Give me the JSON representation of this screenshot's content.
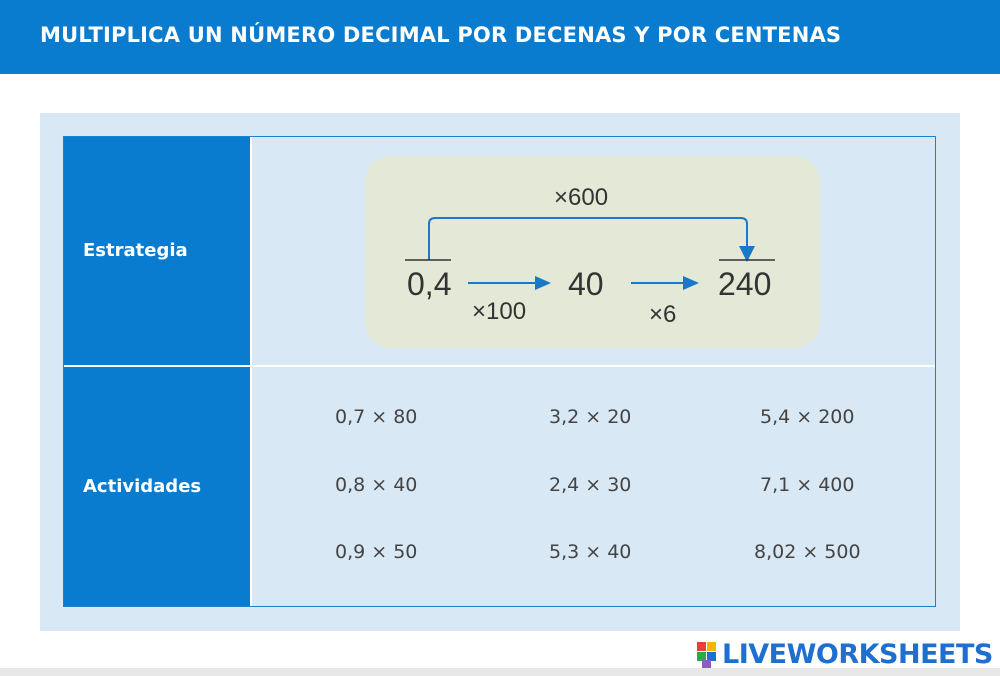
{
  "header": {
    "title": "MULTIPLICA UN NÚMERO DECIMAL POR DECENAS Y POR CENTENAS"
  },
  "rows": {
    "strategy_label": "Estrategia",
    "activities_label": "Actividades"
  },
  "strategy": {
    "top_operator": "×600",
    "start_value": "0,4",
    "middle_value": "40",
    "end_value": "240",
    "operator_1": "×100",
    "operator_2": "×6"
  },
  "activities": [
    [
      "0,7 × 80",
      "3,2 × 20",
      "5,4 × 200"
    ],
    [
      "0,8 × 40",
      "2,4 × 30",
      "7,1 × 400"
    ],
    [
      "0,9 × 50",
      "5,3 × 40",
      "8,02 × 500"
    ]
  ],
  "colors": {
    "primary_blue": "#0a7ccf",
    "panel_bg": "#d9e8f5",
    "strategy_bg": "#e4e8d6",
    "arrow": "#1a78c9"
  },
  "footer": {
    "logo_text": "LIVEWORKSHEETS"
  }
}
